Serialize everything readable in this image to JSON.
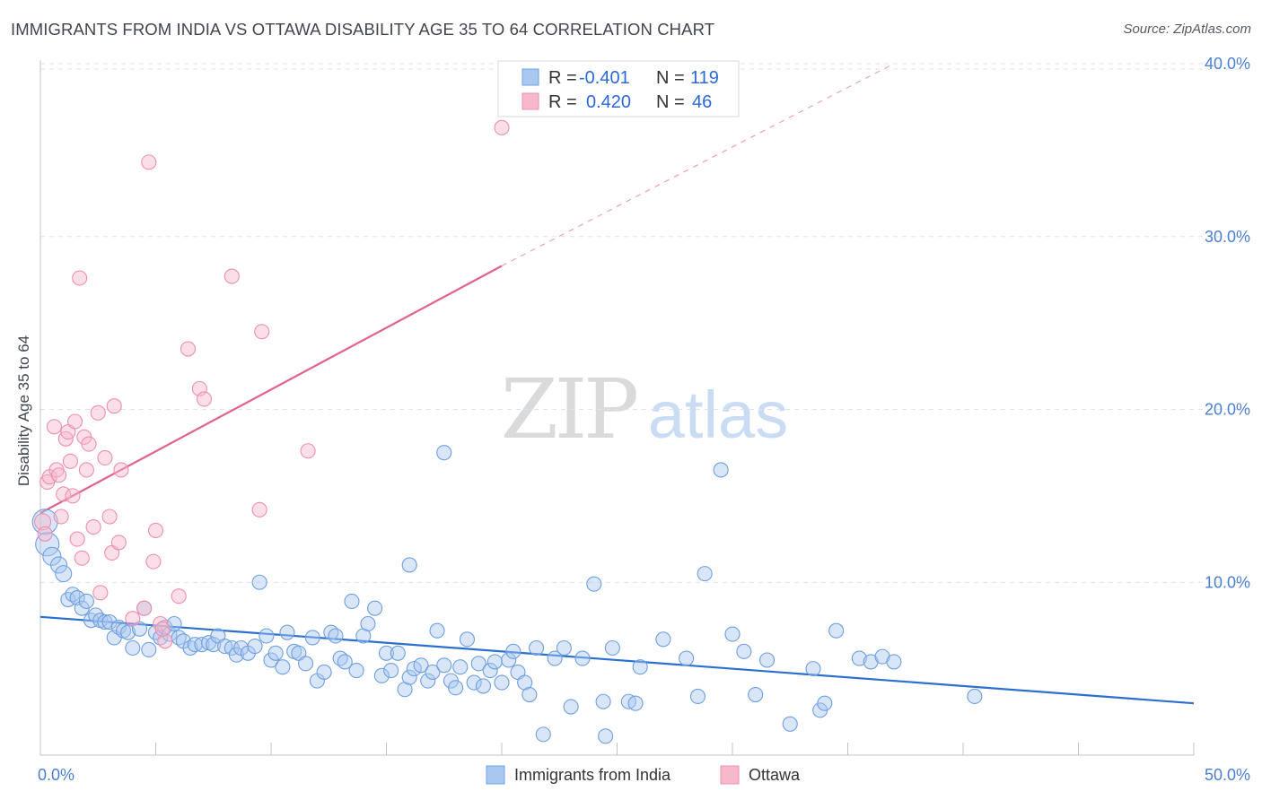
{
  "title": "IMMIGRANTS FROM INDIA VS OTTAWA DISABILITY AGE 35 TO 64 CORRELATION CHART",
  "source": "Source: ZipAtlas.com",
  "watermark": {
    "zip": "ZIP",
    "atlas": "atlas"
  },
  "legend": {
    "rows": [
      {
        "r_label": "R =",
        "r_value": "-0.401",
        "n_label": "N =",
        "n_value": "119",
        "color": "#a9c8f0",
        "stroke": "#6f9fe0"
      },
      {
        "r_label": "R =",
        "r_value": "0.420",
        "n_label": "N =",
        "n_value": "46",
        "color": "#f7b8cb",
        "stroke": "#ec8fae"
      }
    ]
  },
  "bottom_legend": [
    {
      "label": "Immigrants from India",
      "color": "#a9c8f0",
      "stroke": "#6f9fe0"
    },
    {
      "label": "Ottawa",
      "color": "#f7b8cb",
      "stroke": "#ec8fae"
    }
  ],
  "chart_data": {
    "type": "scatter",
    "title": "IMMIGRANTS FROM INDIA VS OTTAWA DISABILITY AGE 35 TO 64 CORRELATION CHART",
    "xlabel": "",
    "ylabel": "Disability Age 35 to 64",
    "xlim": [
      0,
      50
    ],
    "ylim": [
      0,
      40
    ],
    "x_ticks": [
      "0.0%",
      "50.0%"
    ],
    "y_ticks": [
      {
        "value": 10,
        "label": "10.0%"
      },
      {
        "value": 20,
        "label": "20.0%"
      },
      {
        "value": 30,
        "label": "30.0%"
      },
      {
        "value": 40,
        "label": "40.0%"
      }
    ],
    "grid": true,
    "series": [
      {
        "name": "Immigrants from India",
        "color": "#a9c8f0",
        "stroke": "#6f9fe0",
        "trend": {
          "x": [
            0,
            50
          ],
          "y": [
            8.0,
            3.0
          ],
          "color": "#2b6fd0"
        },
        "points": [
          [
            0.2,
            13.5,
            14
          ],
          [
            0.3,
            12.2,
            13
          ],
          [
            0.5,
            11.5,
            10
          ],
          [
            0.8,
            11.0,
            9
          ],
          [
            1.0,
            10.5,
            9
          ],
          [
            1.2,
            9.0,
            8
          ],
          [
            1.4,
            9.3,
            8
          ],
          [
            1.6,
            9.1,
            8
          ],
          [
            1.8,
            8.5,
            8
          ],
          [
            2.0,
            8.9,
            8
          ],
          [
            2.2,
            7.8,
            8
          ],
          [
            2.4,
            8.1,
            8
          ],
          [
            2.6,
            7.8,
            8
          ],
          [
            2.8,
            7.7,
            8
          ],
          [
            3.0,
            7.7,
            8
          ],
          [
            3.2,
            6.8,
            8
          ],
          [
            3.4,
            7.4,
            8
          ],
          [
            3.6,
            7.2,
            8
          ],
          [
            3.8,
            7.1,
            8
          ],
          [
            4.0,
            6.2,
            8
          ],
          [
            4.3,
            7.3,
            8
          ],
          [
            4.5,
            8.5,
            8
          ],
          [
            4.7,
            6.1,
            8
          ],
          [
            5.0,
            7.1,
            8
          ],
          [
            5.2,
            6.8,
            8
          ],
          [
            5.4,
            7.4,
            8
          ],
          [
            5.6,
            7.0,
            8
          ],
          [
            5.8,
            7.6,
            8
          ],
          [
            6.0,
            6.8,
            8
          ],
          [
            6.2,
            6.6,
            8
          ],
          [
            6.5,
            6.2,
            8
          ],
          [
            6.7,
            6.4,
            8
          ],
          [
            7.0,
            6.4,
            8
          ],
          [
            7.3,
            6.5,
            8
          ],
          [
            7.5,
            6.4,
            8
          ],
          [
            7.7,
            6.9,
            8
          ],
          [
            8.0,
            6.3,
            8
          ],
          [
            8.3,
            6.2,
            8
          ],
          [
            8.5,
            5.8,
            8
          ],
          [
            8.7,
            6.2,
            8
          ],
          [
            9.0,
            5.9,
            8
          ],
          [
            9.3,
            6.3,
            8
          ],
          [
            9.5,
            10.0,
            8
          ],
          [
            9.8,
            6.9,
            8
          ],
          [
            10.0,
            5.5,
            8
          ],
          [
            10.2,
            5.9,
            8
          ],
          [
            10.5,
            5.1,
            8
          ],
          [
            10.7,
            7.1,
            8
          ],
          [
            11.0,
            6.0,
            8
          ],
          [
            11.2,
            5.9,
            8
          ],
          [
            11.5,
            5.3,
            8
          ],
          [
            11.8,
            6.8,
            8
          ],
          [
            12.0,
            4.3,
            8
          ],
          [
            12.3,
            4.8,
            8
          ],
          [
            12.6,
            7.1,
            8
          ],
          [
            12.8,
            6.9,
            8
          ],
          [
            13.0,
            5.6,
            8
          ],
          [
            13.2,
            5.4,
            8
          ],
          [
            13.5,
            8.9,
            8
          ],
          [
            13.7,
            4.9,
            8
          ],
          [
            14.0,
            6.9,
            8
          ],
          [
            14.2,
            7.6,
            8
          ],
          [
            14.5,
            8.5,
            8
          ],
          [
            14.8,
            4.6,
            8
          ],
          [
            15.0,
            5.9,
            8
          ],
          [
            15.2,
            4.9,
            8
          ],
          [
            15.5,
            5.9,
            8
          ],
          [
            15.8,
            3.8,
            8
          ],
          [
            16.0,
            4.5,
            8
          ],
          [
            16.2,
            5.0,
            8
          ],
          [
            16.5,
            5.2,
            8
          ],
          [
            16.8,
            4.3,
            8
          ],
          [
            17.0,
            4.8,
            8
          ],
          [
            17.2,
            7.2,
            8
          ],
          [
            17.5,
            5.2,
            8
          ],
          [
            17.8,
            4.3,
            8
          ],
          [
            18.0,
            3.9,
            8
          ],
          [
            18.2,
            5.1,
            8
          ],
          [
            18.5,
            6.7,
            8
          ],
          [
            18.8,
            4.2,
            8
          ],
          [
            19.0,
            5.3,
            8
          ],
          [
            19.2,
            4.0,
            8
          ],
          [
            19.5,
            4.9,
            8
          ],
          [
            19.7,
            5.4,
            8
          ],
          [
            20.0,
            4.2,
            8
          ],
          [
            20.3,
            5.5,
            8
          ],
          [
            20.5,
            6.0,
            8
          ],
          [
            20.7,
            4.8,
            8
          ],
          [
            21.0,
            4.2,
            8
          ],
          [
            21.2,
            3.5,
            8
          ],
          [
            21.5,
            6.2,
            8
          ],
          [
            21.8,
            1.2,
            8
          ],
          [
            22.3,
            5.6,
            8
          ],
          [
            22.7,
            6.2,
            8
          ],
          [
            23.0,
            2.8,
            8
          ],
          [
            23.5,
            5.6,
            8
          ],
          [
            24.0,
            9.9,
            8
          ],
          [
            24.4,
            3.1,
            8
          ],
          [
            24.8,
            6.2,
            8
          ],
          [
            25.5,
            3.1,
            8
          ],
          [
            26.0,
            5.1,
            8
          ],
          [
            17.5,
            17.5,
            8
          ],
          [
            16.0,
            11.0,
            8
          ],
          [
            27.0,
            6.7,
            8
          ],
          [
            28.0,
            5.6,
            8
          ],
          [
            28.8,
            10.5,
            8
          ],
          [
            29.5,
            16.5,
            8
          ],
          [
            30.0,
            7.0,
            8
          ],
          [
            30.5,
            6.0,
            8
          ],
          [
            31.5,
            5.5,
            8
          ],
          [
            32.5,
            1.8,
            8
          ],
          [
            33.5,
            5.0,
            8
          ],
          [
            33.8,
            2.6,
            8
          ],
          [
            34.0,
            3.0,
            8
          ],
          [
            34.5,
            7.2,
            8
          ],
          [
            35.5,
            5.6,
            8
          ],
          [
            36.0,
            5.4,
            8
          ],
          [
            36.5,
            5.7,
            8
          ],
          [
            37.0,
            5.4,
            8
          ],
          [
            40.5,
            3.4,
            8
          ],
          [
            24.5,
            1.1,
            8
          ],
          [
            25.8,
            3.0,
            8
          ],
          [
            31.0,
            3.5,
            8
          ],
          [
            28.5,
            3.4,
            8
          ]
        ]
      },
      {
        "name": "Ottawa",
        "color": "#f7b8cb",
        "stroke": "#ec8fae",
        "trend": {
          "x": [
            0,
            20
          ],
          "y": [
            14.0,
            28.3
          ],
          "dashed_to": {
            "x": 37,
            "y": 40.0
          },
          "color": "#e0628d"
        },
        "points": [
          [
            0.1,
            13.5,
            9
          ],
          [
            0.2,
            12.8,
            8
          ],
          [
            0.3,
            15.8,
            8
          ],
          [
            0.4,
            16.1,
            8
          ],
          [
            0.6,
            19.0,
            8
          ],
          [
            0.7,
            16.5,
            8
          ],
          [
            0.8,
            16.2,
            8
          ],
          [
            0.9,
            13.8,
            8
          ],
          [
            1.0,
            15.1,
            8
          ],
          [
            1.1,
            18.3,
            8
          ],
          [
            1.2,
            18.7,
            8
          ],
          [
            1.3,
            17.0,
            8
          ],
          [
            1.4,
            15.0,
            8
          ],
          [
            1.5,
            19.3,
            8
          ],
          [
            1.6,
            12.5,
            8
          ],
          [
            1.7,
            27.6,
            8
          ],
          [
            1.8,
            11.4,
            8
          ],
          [
            1.9,
            18.4,
            8
          ],
          [
            2.0,
            16.5,
            8
          ],
          [
            2.1,
            18.0,
            8
          ],
          [
            2.3,
            13.2,
            8
          ],
          [
            2.5,
            19.8,
            8
          ],
          [
            2.6,
            9.4,
            8
          ],
          [
            2.8,
            17.2,
            8
          ],
          [
            3.0,
            13.8,
            8
          ],
          [
            3.1,
            11.7,
            8
          ],
          [
            3.2,
            20.2,
            8
          ],
          [
            3.4,
            12.3,
            8
          ],
          [
            3.5,
            16.5,
            8
          ],
          [
            4.0,
            7.9,
            8
          ],
          [
            4.5,
            8.5,
            8
          ],
          [
            4.7,
            34.3,
            8
          ],
          [
            4.9,
            11.2,
            8
          ],
          [
            5.0,
            13.0,
            8
          ],
          [
            5.2,
            7.6,
            8
          ],
          [
            5.4,
            6.6,
            8
          ],
          [
            6.0,
            9.2,
            8
          ],
          [
            6.4,
            23.5,
            8
          ],
          [
            6.9,
            21.2,
            8
          ],
          [
            7.1,
            20.6,
            8
          ],
          [
            8.3,
            27.7,
            8
          ],
          [
            9.5,
            14.2,
            8
          ],
          [
            9.6,
            24.5,
            8
          ],
          [
            11.6,
            17.6,
            8
          ],
          [
            20.0,
            36.3,
            8
          ],
          [
            5.3,
            7.3,
            8
          ]
        ]
      }
    ]
  }
}
